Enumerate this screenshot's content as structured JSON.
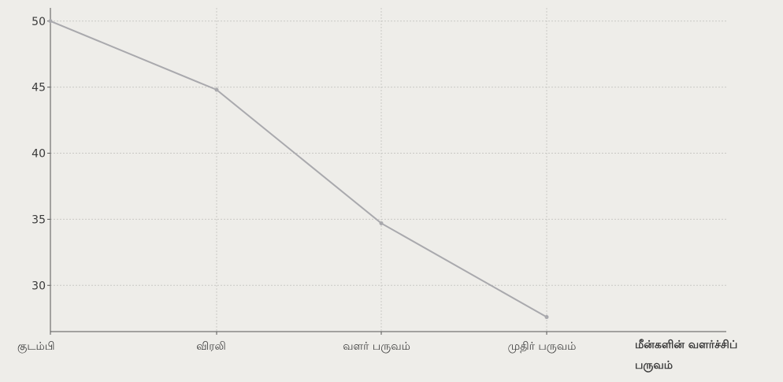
{
  "chart_data": {
    "type": "line",
    "categories": [
      "குடம்பி",
      "விரலி",
      "வளர் பருவம்",
      "முதிர் பருவம்"
    ],
    "series": [
      {
        "values": [
          50,
          44.8,
          34.7,
          27.6
        ]
      }
    ],
    "xlabel": "மீன்களின் வளர்ச்சிப் பருவம்",
    "ylabel": "",
    "y_ticks": [
      30,
      35,
      40,
      45,
      50
    ],
    "ylim": [
      26.5,
      51
    ],
    "grid": true,
    "line_color": "#a9a9ad",
    "grid_color": "#c9c9c5"
  }
}
